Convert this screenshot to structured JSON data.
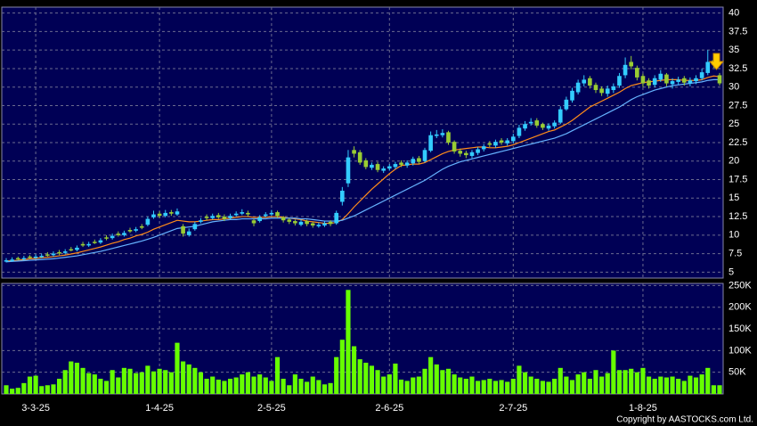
{
  "chart_data": {
    "type": "candlestick",
    "up_color": "#33ccff",
    "down_color": "#99cc33",
    "grid": true,
    "categories": [
      null,
      null,
      null,
      null,
      null,
      "3-3-25",
      null,
      null,
      null,
      null,
      null,
      null,
      null,
      null,
      null,
      null,
      null,
      null,
      null,
      null,
      null,
      null,
      null,
      null,
      null,
      null,
      "1-4-25",
      null,
      null,
      null,
      null,
      null,
      null,
      null,
      null,
      null,
      null,
      null,
      null,
      null,
      null,
      null,
      null,
      null,
      null,
      "2-5-25",
      null,
      null,
      null,
      null,
      null,
      null,
      null,
      null,
      null,
      null,
      null,
      null,
      null,
      null,
      null,
      null,
      null,
      null,
      null,
      "2-6-25",
      null,
      null,
      null,
      null,
      null,
      null,
      null,
      null,
      null,
      null,
      null,
      null,
      null,
      null,
      null,
      null,
      null,
      null,
      null,
      null,
      "2-7-25",
      null,
      null,
      null,
      null,
      null,
      null,
      null,
      null,
      null,
      null,
      null,
      null,
      null,
      null,
      null,
      null,
      null,
      null,
      null,
      null,
      null,
      "1-8-25",
      null,
      null,
      null,
      null,
      null,
      null,
      null,
      null,
      null,
      null,
      null,
      null,
      null
    ],
    "open": [
      6.5,
      6.6,
      6.9,
      6.8,
      7.1,
      7.0,
      7.1,
      7.4,
      7.3,
      7.7,
      7.6,
      8.1,
      8.0,
      8.8,
      8.6,
      9.1,
      9.0,
      9.7,
      9.6,
      10.2,
      10.0,
      10.7,
      10.6,
      11.2,
      11.4,
      12.4,
      12.9,
      12.6,
      13.1,
      12.8,
      11.2,
      10.0,
      10.8,
      11.8,
      12.5,
      12.3,
      12.7,
      12.5,
      12.3,
      12.7,
      12.9,
      13.0,
      12.0,
      11.9,
      12.6,
      12.8,
      13.1,
      12.4,
      12.1,
      11.9,
      11.4,
      11.9,
      11.6,
      11.2,
      11.3,
      11.8,
      11.6,
      14.5,
      17.0,
      21.5,
      21.2,
      20.1,
      19.1,
      19.6,
      18.7,
      19.0,
      19.2,
      19.8,
      19.4,
      19.7,
      20.4,
      20.0,
      21.4,
      23.4,
      23.5,
      23.9,
      22.6,
      21.4,
      21.1,
      20.7,
      21.1,
      21.6,
      22.4,
      22.1,
      22.8,
      22.4,
      22.7,
      23.4,
      24.4,
      25.1,
      25.5,
      25.0,
      24.4,
      24.7,
      25.2,
      27.0,
      28.2,
      29.3,
      30.5,
      31.2,
      30.3,
      29.8,
      29.1,
      29.6,
      30.2,
      31.6,
      33.4,
      32.6,
      31.5,
      30.9,
      30.3,
      31.0,
      31.7,
      30.4,
      30.7,
      31.2,
      30.5,
      30.8,
      31.2,
      31.9,
      33.6,
      31.6
    ],
    "high": [
      6.9,
      7.0,
      7.1,
      7.2,
      7.3,
      7.4,
      7.5,
      7.7,
      7.8,
      8.0,
      8.1,
      8.4,
      8.6,
      9.1,
      9.1,
      9.4,
      9.6,
      10.0,
      10.2,
      10.5,
      10.6,
      11.0,
      11.1,
      11.5,
      12.5,
      13.3,
      13.2,
      13.4,
      13.4,
      13.6,
      11.5,
      10.9,
      11.8,
      12.3,
      12.8,
      12.9,
      13.0,
      12.8,
      12.9,
      13.2,
      13.5,
      13.3,
      12.2,
      12.7,
      13.1,
      13.4,
      13.3,
      12.6,
      12.3,
      12.1,
      12.1,
      12.1,
      11.8,
      11.7,
      11.9,
      12.0,
      13.3,
      16.5,
      21.5,
      22.0,
      21.5,
      20.4,
      19.8,
      19.9,
      19.3,
      19.6,
      19.9,
      20.1,
      20.1,
      20.6,
      20.7,
      21.8,
      24.0,
      24.2,
      24.3,
      24.1,
      22.8,
      21.7,
      21.4,
      21.5,
      21.9,
      22.3,
      22.7,
      22.9,
      23.1,
      23.1,
      23.7,
      24.9,
      25.4,
      25.8,
      25.8,
      25.2,
      25.1,
      25.5,
      27.4,
      28.7,
      29.9,
      31.0,
      31.6,
      31.5,
      30.6,
      30.1,
      30.2,
      30.5,
      31.9,
      34.0,
      34.2,
      32.9,
      31.8,
      31.2,
      31.6,
      32.3,
      31.9,
      31.2,
      31.4,
      31.5,
      31.3,
      31.6,
      32.5,
      35.0,
      33.9,
      31.9
    ],
    "low": [
      6.3,
      6.4,
      6.6,
      6.6,
      6.8,
      6.8,
      6.9,
      7.1,
      7.1,
      7.3,
      7.4,
      7.8,
      7.8,
      8.4,
      8.4,
      8.8,
      8.8,
      9.3,
      9.4,
      9.8,
      9.8,
      10.3,
      10.4,
      10.8,
      11.2,
      12.2,
      12.3,
      12.4,
      12.6,
      12.6,
      9.8,
      9.8,
      10.6,
      11.6,
      12.0,
      12.1,
      12.2,
      11.9,
      12.1,
      12.5,
      12.7,
      12.5,
      11.2,
      11.7,
      12.4,
      12.6,
      12.3,
      11.7,
      11.5,
      11.3,
      11.2,
      11.2,
      11.0,
      11.0,
      11.1,
      11.2,
      11.4,
      14.0,
      16.5,
      20.5,
      19.5,
      18.9,
      18.8,
      18.5,
      18.4,
      18.7,
      18.9,
      19.2,
      19.1,
      19.4,
      19.6,
      19.8,
      21.2,
      23.1,
      23.2,
      22.2,
      21.0,
      20.6,
      20.4,
      20.4,
      20.8,
      21.3,
      21.9,
      21.8,
      22.2,
      22.1,
      22.4,
      23.1,
      24.1,
      24.8,
      24.5,
      24.2,
      24.1,
      24.4,
      25.0,
      26.8,
      27.9,
      29.0,
      30.1,
      29.8,
      29.2,
      28.8,
      28.7,
      29.2,
      29.9,
      31.2,
      32.4,
      30.9,
      30.0,
      29.8,
      30.0,
      30.7,
      30.1,
      29.8,
      30.3,
      30.2,
      30.1,
      30.4,
      30.9,
      31.6,
      32.6,
      30.2
    ],
    "close": [
      6.6,
      6.7,
      6.8,
      6.9,
      7.0,
      7.1,
      7.2,
      7.3,
      7.5,
      7.6,
      7.8,
      8.0,
      8.3,
      8.6,
      8.8,
      9.0,
      9.3,
      9.6,
      9.9,
      10.0,
      10.3,
      10.5,
      10.8,
      11.0,
      12.2,
      12.8,
      12.6,
      13.0,
      12.9,
      13.2,
      10.2,
      10.5,
      11.5,
      12.0,
      12.3,
      12.6,
      12.4,
      12.2,
      12.6,
      12.9,
      13.1,
      12.8,
      11.6,
      12.4,
      12.8,
      13.0,
      12.6,
      12.0,
      11.8,
      11.6,
      11.8,
      11.5,
      11.3,
      11.4,
      11.6,
      11.5,
      13.0,
      16.0,
      20.5,
      21.0,
      19.8,
      19.2,
      19.5,
      18.8,
      19.0,
      19.3,
      19.6,
      19.5,
      19.8,
      20.3,
      19.9,
      21.5,
      23.5,
      23.6,
      23.8,
      22.5,
      21.3,
      21.0,
      20.8,
      21.2,
      21.6,
      22.0,
      22.2,
      22.6,
      22.5,
      22.8,
      23.3,
      24.5,
      25.0,
      25.3,
      24.8,
      24.5,
      24.8,
      25.2,
      27.0,
      28.3,
      29.5,
      30.6,
      31.0,
      30.2,
      29.6,
      29.2,
      29.8,
      30.1,
      31.5,
      33.0,
      32.8,
      31.3,
      30.5,
      30.2,
      31.2,
      31.8,
      30.5,
      30.8,
      31.0,
      30.6,
      30.9,
      31.2,
      32.0,
      33.4,
      33.0,
      30.5
    ],
    "moving_averages": [
      {
        "color": "#ff8c1a",
        "values": [
          6.5,
          6.55,
          6.6,
          6.7,
          6.8,
          6.85,
          6.95,
          7.0,
          7.1,
          7.2,
          7.3,
          7.45,
          7.6,
          7.8,
          8.0,
          8.2,
          8.4,
          8.65,
          8.9,
          9.1,
          9.4,
          9.6,
          9.9,
          10.1,
          10.4,
          10.8,
          11.1,
          11.4,
          11.7,
          12.0,
          11.9,
          11.8,
          11.8,
          11.9,
          12.0,
          12.1,
          12.1,
          12.2,
          12.3,
          12.4,
          12.5,
          12.5,
          12.4,
          12.4,
          12.4,
          12.5,
          12.5,
          12.4,
          12.3,
          12.2,
          12.1,
          11.9,
          11.8,
          11.7,
          11.6,
          11.6,
          11.7,
          12.1,
          12.9,
          13.8,
          14.6,
          15.4,
          16.2,
          16.9,
          17.6,
          18.3,
          18.9,
          19.4,
          19.5,
          19.6,
          19.6,
          19.8,
          20.2,
          20.6,
          21.0,
          21.3,
          21.5,
          21.6,
          21.7,
          21.8,
          21.9,
          21.9,
          21.8,
          21.8,
          21.9,
          22.0,
          22.2,
          22.5,
          22.8,
          23.1,
          23.4,
          23.7,
          24.0,
          24.2,
          24.6,
          25.0,
          25.5,
          26.1,
          26.7,
          27.3,
          27.7,
          28.1,
          28.5,
          28.9,
          29.3,
          29.8,
          30.2,
          30.4,
          30.6,
          30.7,
          30.8,
          30.9,
          31.0,
          31.0,
          31.0,
          30.9,
          30.9,
          30.9,
          31.0,
          31.3,
          31.5,
          31.4
        ]
      },
      {
        "color": "#66b3ff",
        "values": [
          6.4,
          6.45,
          6.5,
          6.55,
          6.6,
          6.65,
          6.7,
          6.75,
          6.8,
          6.9,
          7.0,
          7.1,
          7.2,
          7.35,
          7.5,
          7.65,
          7.8,
          8.0,
          8.2,
          8.4,
          8.6,
          8.8,
          9.0,
          9.2,
          9.45,
          9.7,
          10.0,
          10.3,
          10.6,
          10.9,
          11.0,
          11.1,
          11.2,
          11.4,
          11.6,
          11.8,
          11.9,
          12.0,
          12.1,
          12.1,
          12.2,
          12.2,
          12.2,
          12.2,
          12.2,
          12.3,
          12.3,
          12.3,
          12.3,
          12.3,
          12.2,
          12.2,
          12.1,
          12.0,
          11.9,
          11.9,
          11.9,
          12.0,
          12.3,
          12.6,
          13.0,
          13.4,
          13.8,
          14.2,
          14.6,
          15.0,
          15.4,
          15.8,
          16.2,
          16.6,
          17.0,
          17.4,
          17.9,
          18.4,
          18.9,
          19.3,
          19.6,
          19.9,
          20.1,
          20.3,
          20.5,
          20.7,
          20.9,
          21.1,
          21.3,
          21.5,
          21.7,
          21.9,
          22.1,
          22.3,
          22.5,
          22.7,
          22.9,
          23.1,
          23.4,
          23.7,
          24.1,
          24.5,
          24.9,
          25.3,
          25.7,
          26.1,
          26.5,
          26.9,
          27.3,
          27.8,
          28.3,
          28.7,
          29.0,
          29.3,
          29.6,
          29.8,
          30.0,
          30.2,
          30.3,
          30.4,
          30.5,
          30.6,
          30.7,
          30.9,
          31.0,
          31.0
        ]
      }
    ],
    "ylim": [
      4.2,
      40.8
    ],
    "yticks": [
      5,
      7.5,
      10,
      12.5,
      15,
      17.5,
      20,
      22.5,
      25,
      27.5,
      30,
      32.5,
      35,
      37.5,
      40
    ],
    "volume": {
      "color": "#66ff00",
      "values": [
        20000,
        12000,
        14000,
        25000,
        40000,
        42000,
        18000,
        20000,
        22000,
        35000,
        55000,
        75000,
        72000,
        60000,
        48000,
        45000,
        35000,
        30000,
        55000,
        38000,
        60000,
        58000,
        48000,
        50000,
        65000,
        52000,
        58000,
        55000,
        50000,
        118000,
        75000,
        68000,
        60000,
        50000,
        35000,
        40000,
        33000,
        30000,
        35000,
        38000,
        45000,
        50000,
        40000,
        45000,
        38000,
        30000,
        85000,
        35000,
        20000,
        45000,
        35000,
        28000,
        40000,
        32000,
        22000,
        25000,
        85000,
        125000,
        240000,
        110000,
        80000,
        72000,
        65000,
        55000,
        40000,
        45000,
        70000,
        33000,
        30000,
        38000,
        40000,
        58000,
        85000,
        68000,
        55000,
        58000,
        45000,
        38000,
        35000,
        40000,
        30000,
        32000,
        35000,
        30000,
        32000,
        28000,
        35000,
        65000,
        50000,
        40000,
        35000,
        30000,
        28000,
        35000,
        60000,
        40000,
        32000,
        45000,
        50000,
        35000,
        55000,
        40000,
        48000,
        100000,
        55000,
        55000,
        58000,
        50000,
        60000,
        40000,
        35000,
        40000,
        38000,
        40000,
        35000,
        30000,
        42000,
        38000,
        45000,
        60000,
        20000,
        20000
      ],
      "ylim": [
        0,
        255000
      ],
      "yticks": [
        {
          "value": 50000,
          "label": "50K"
        },
        {
          "value": 100000,
          "label": "100K"
        },
        {
          "value": 150000,
          "label": "150K"
        },
        {
          "value": 200000,
          "label": "200K"
        },
        {
          "value": 250000,
          "label": "250K"
        }
      ]
    },
    "copyright": "Copyright by AASTOCKS.com Ltd."
  }
}
